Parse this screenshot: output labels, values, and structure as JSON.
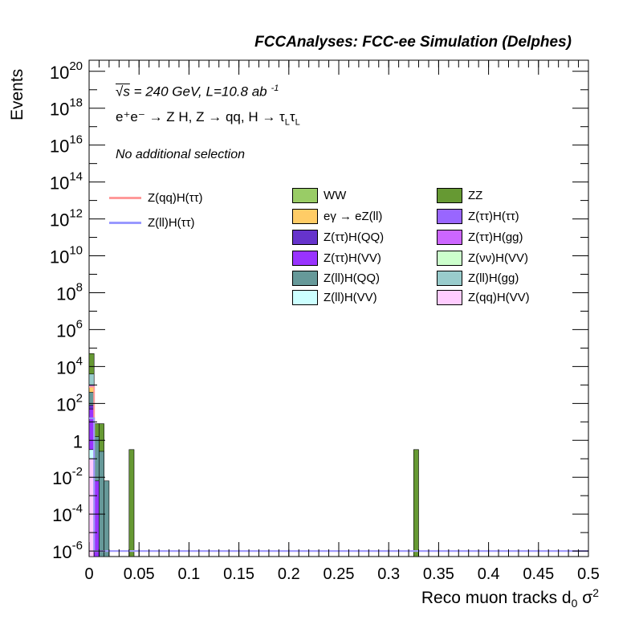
{
  "header": {
    "title": "FCCAnalyses: FCC-ee Simulation (Delphes)"
  },
  "annotations": {
    "energy_sqrt": "√s",
    "energy_rest": " = 240 GeV, L=10.8 ab",
    "energy_sup": "-1",
    "process": "e⁺e⁻ → Z H, Z  → qq, H  → τ",
    "process_sub1": "L",
    "process_tau2": "τ",
    "process_sub2": "L",
    "selection": "No additional selection"
  },
  "chart_data": {
    "type": "bar",
    "title": "FCCAnalyses: FCC-ee Simulation (Delphes)",
    "xlabel": "Reco muon tracks d",
    "xlabel_sub": "0",
    "xlabel_tail": " σ",
    "xlabel_sup": "2",
    "ylabel": "Events",
    "xlim": [
      0,
      0.5
    ],
    "ylim_log10": [
      -6.3,
      20.6
    ],
    "y_scale": "log",
    "grid": false,
    "legend_placement": "top-right",
    "x_ticks": [
      "0",
      "0.05",
      "0.1",
      "0.15",
      "0.2",
      "0.25",
      "0.3",
      "0.35",
      "0.4",
      "0.45",
      "0.5"
    ],
    "y_ticks": [
      {
        "base": "10",
        "exp": "-6",
        "log": -6
      },
      {
        "base": "10",
        "exp": "-4",
        "log": -4
      },
      {
        "base": "10",
        "exp": "-2",
        "log": -2
      },
      {
        "base": "1",
        "exp": "",
        "log": 0
      },
      {
        "base": "10",
        "exp": "2",
        "log": 2
      },
      {
        "base": "10",
        "exp": "4",
        "log": 4
      },
      {
        "base": "10",
        "exp": "6",
        "log": 6
      },
      {
        "base": "10",
        "exp": "8",
        "log": 8
      },
      {
        "base": "10",
        "exp": "10",
        "log": 10
      },
      {
        "base": "10",
        "exp": "12",
        "log": 12
      },
      {
        "base": "10",
        "exp": "14",
        "log": 14
      },
      {
        "base": "10",
        "exp": "16",
        "log": 16
      },
      {
        "base": "10",
        "exp": "18",
        "log": 18
      },
      {
        "base": "10",
        "exp": "20",
        "log": 20
      }
    ],
    "bin_width": 0.005,
    "stack_bars": [
      {
        "x0": 0.0,
        "layers": [
          {
            "name": "Z(qq)H(VV)",
            "log_top": -1.0
          },
          {
            "name": "Z(ll)H(VV)",
            "log_top": -0.5
          },
          {
            "name": "Z(ττ)H(VV)",
            "log_top": 1.7
          },
          {
            "name": "Z(ττ)H(QQ)",
            "log_top": 1.9
          },
          {
            "name": "Z(ll)H(QQ)",
            "log_top": 2.6
          },
          {
            "name": "eγ → eZ(ll)",
            "log_top": 2.9
          },
          {
            "name": "Z(ττ)H(ττ)",
            "log_top": 3.0
          },
          {
            "name": "Z(ll)H(gg)",
            "log_top": 3.6
          },
          {
            "name": "ZZ",
            "log_top": 4.7
          }
        ]
      },
      {
        "x0": 0.005,
        "layers": [
          {
            "name": "Z(ττ)H(VV)",
            "log_top": -2.2
          },
          {
            "name": "Z(ll)H(QQ)",
            "log_top": 0.2
          },
          {
            "name": "ZZ",
            "log_top": 0.9
          }
        ]
      },
      {
        "x0": 0.01,
        "layers": [
          {
            "name": "Z(ll)H(QQ)",
            "log_top": -0.6
          },
          {
            "name": "ZZ",
            "log_top": 0.9
          }
        ]
      },
      {
        "x0": 0.015,
        "layers": [
          {
            "name": "Z(ll)H(QQ)",
            "log_top": -2.2
          }
        ]
      },
      {
        "x0": 0.04,
        "layers": [
          {
            "name": "ZZ",
            "log_top": -0.5
          }
        ]
      },
      {
        "x0": 0.325,
        "layers": [
          {
            "name": "ZZ",
            "log_top": -0.5
          }
        ]
      }
    ],
    "line_series": [
      {
        "name": "Z(qq)H(ττ)",
        "color": "#ff9999",
        "x": [
          0.0,
          0.005,
          0.005,
          0.5
        ],
        "log_y": [
          2.9,
          2.9,
          -6.0,
          -6.0
        ]
      },
      {
        "name": "Z(ll)H(ττ)",
        "color": "#9999ff",
        "x": [
          0.0,
          0.005,
          0.005,
          0.5
        ],
        "log_y": [
          1.2,
          1.2,
          -6.0,
          -6.0
        ]
      }
    ],
    "legend": {
      "lines": [
        {
          "name": "Z(qq)H(ττ)",
          "color": "#ff9999"
        },
        {
          "name": "Z(ll)H(ττ)",
          "color": "#9999ff"
        }
      ],
      "fills": [
        {
          "name": "WW",
          "color": "#99cc66"
        },
        {
          "name": "ZZ",
          "color": "#669933"
        },
        {
          "name": "eγ → eZ(ll)",
          "color": "#ffcc66"
        },
        {
          "name": "Z(ττ)H(ττ)",
          "color": "#9966ff"
        },
        {
          "name": "Z(ττ)H(QQ)",
          "color": "#6633cc"
        },
        {
          "name": "Z(ττ)H(gg)",
          "color": "#cc66ff"
        },
        {
          "name": "Z(ττ)H(VV)",
          "color": "#9933ff"
        },
        {
          "name": "Z(νν)H(VV)",
          "color": "#ccffcc"
        },
        {
          "name": "Z(ll)H(QQ)",
          "color": "#669999"
        },
        {
          "name": "Z(ll)H(gg)",
          "color": "#99cccc"
        },
        {
          "name": "Z(ll)H(VV)",
          "color": "#ccffff"
        },
        {
          "name": "Z(qq)H(VV)",
          "color": "#ffccff"
        }
      ]
    }
  }
}
